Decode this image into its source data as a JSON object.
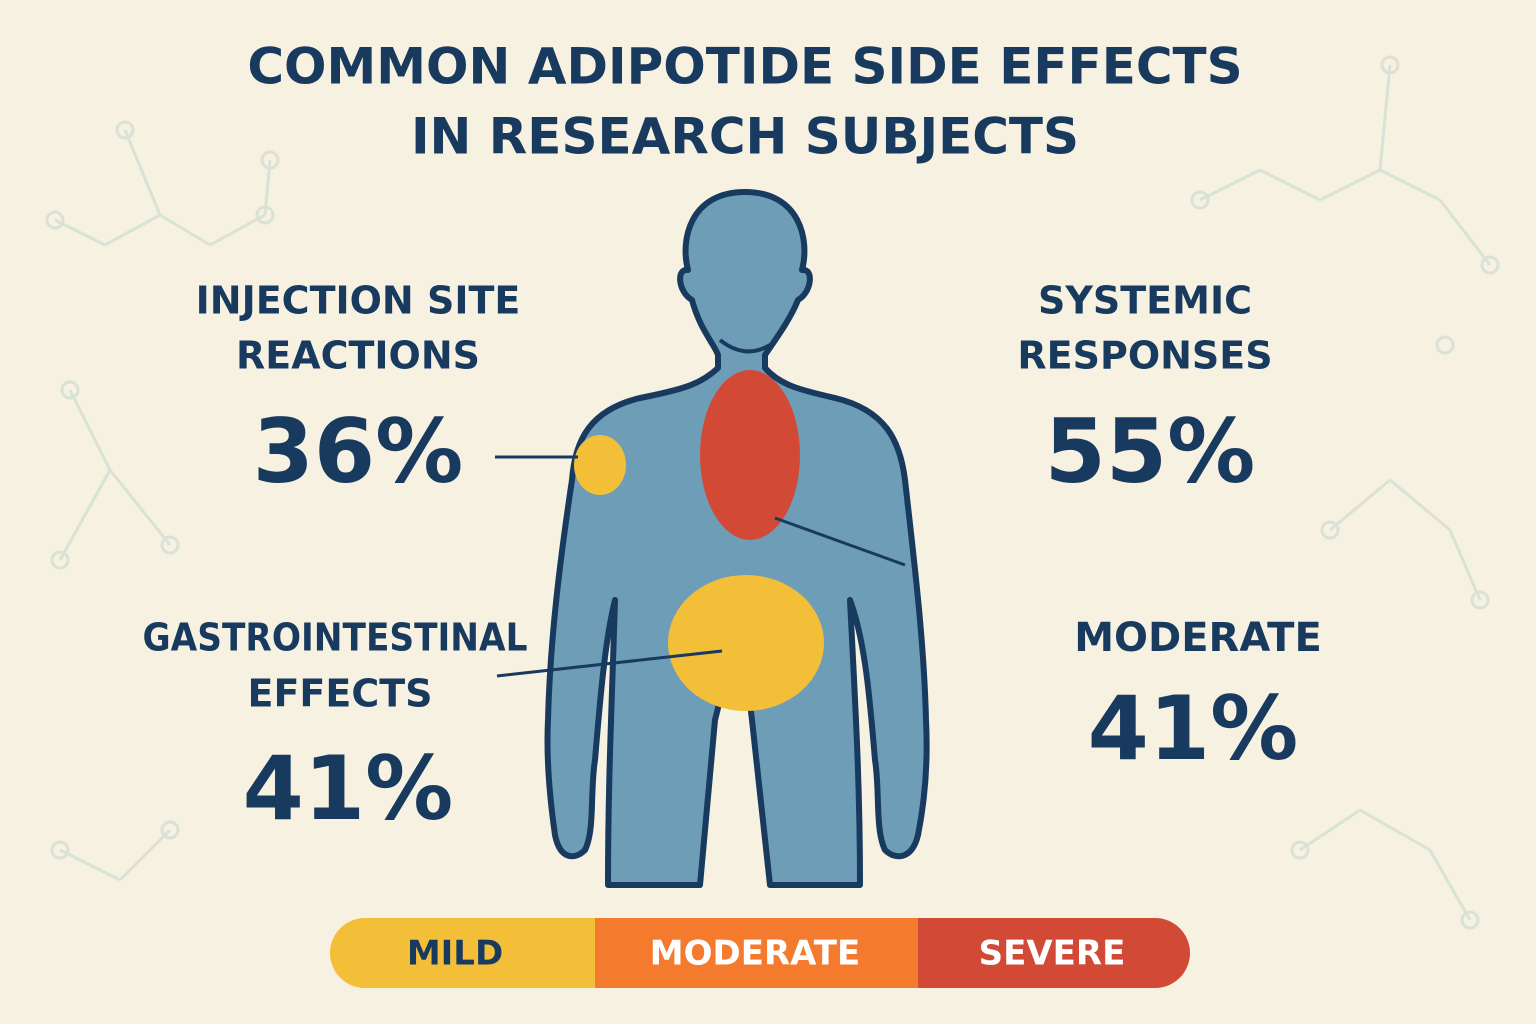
{
  "title": [
    "COMMON ADIPOTIDE SIDE EFFECTS",
    "IN RESEARCH SUBJECTS"
  ],
  "stats": [
    {
      "label": [
        "INJECTION SITE",
        "REACTIONS"
      ],
      "value": "36%"
    },
    {
      "label": [
        "SYSTEMIC",
        "RESPONSES"
      ],
      "value": "55%"
    },
    {
      "label": [
        "GASTROINTESTINAL",
        "EFFECTS"
      ],
      "value": "41%"
    },
    {
      "label": [
        "MODERATE"
      ],
      "value": "41%"
    }
  ],
  "legend": [
    "MILD",
    "MODERATE",
    "SEVERE"
  ]
}
